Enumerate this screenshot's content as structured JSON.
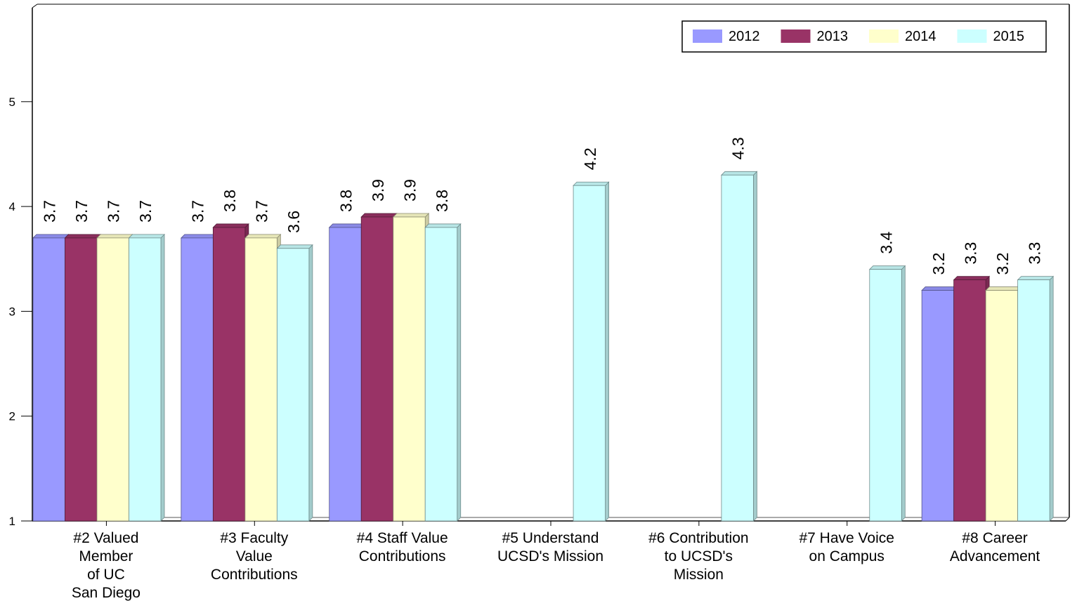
{
  "chart_data": {
    "type": "bar",
    "title": "",
    "xlabel": "",
    "ylabel": "",
    "ylim": [
      1,
      5.9
    ],
    "yticks": [
      1,
      2,
      3,
      4,
      5
    ],
    "grid": false,
    "legend_position": "top-right",
    "categories": [
      [
        "#2 Valued",
        "Member",
        "of UC",
        "San Diego"
      ],
      [
        "#3 Faculty",
        "Value",
        "Contributions"
      ],
      [
        "#4 Staff Value",
        "Contributions"
      ],
      [
        "#5 Understand",
        "UCSD's Mission"
      ],
      [
        "#6 Contribution",
        "to UCSD's",
        "Mission"
      ],
      [
        "#7 Have Voice",
        "on Campus"
      ],
      [
        "#8 Career",
        "Advancement"
      ]
    ],
    "series": [
      {
        "name": "2012",
        "color": "#9999ff",
        "values": [
          3.7,
          3.7,
          3.8,
          null,
          null,
          null,
          3.2
        ]
      },
      {
        "name": "2013",
        "color": "#993366",
        "values": [
          3.7,
          3.8,
          3.9,
          null,
          null,
          null,
          3.3
        ]
      },
      {
        "name": "2014",
        "color": "#ffffcc",
        "values": [
          3.7,
          3.7,
          3.9,
          null,
          null,
          null,
          3.2
        ]
      },
      {
        "name": "2015",
        "color": "#ccffff",
        "values": [
          3.7,
          3.6,
          3.8,
          4.2,
          4.3,
          3.4,
          3.3
        ]
      }
    ]
  }
}
